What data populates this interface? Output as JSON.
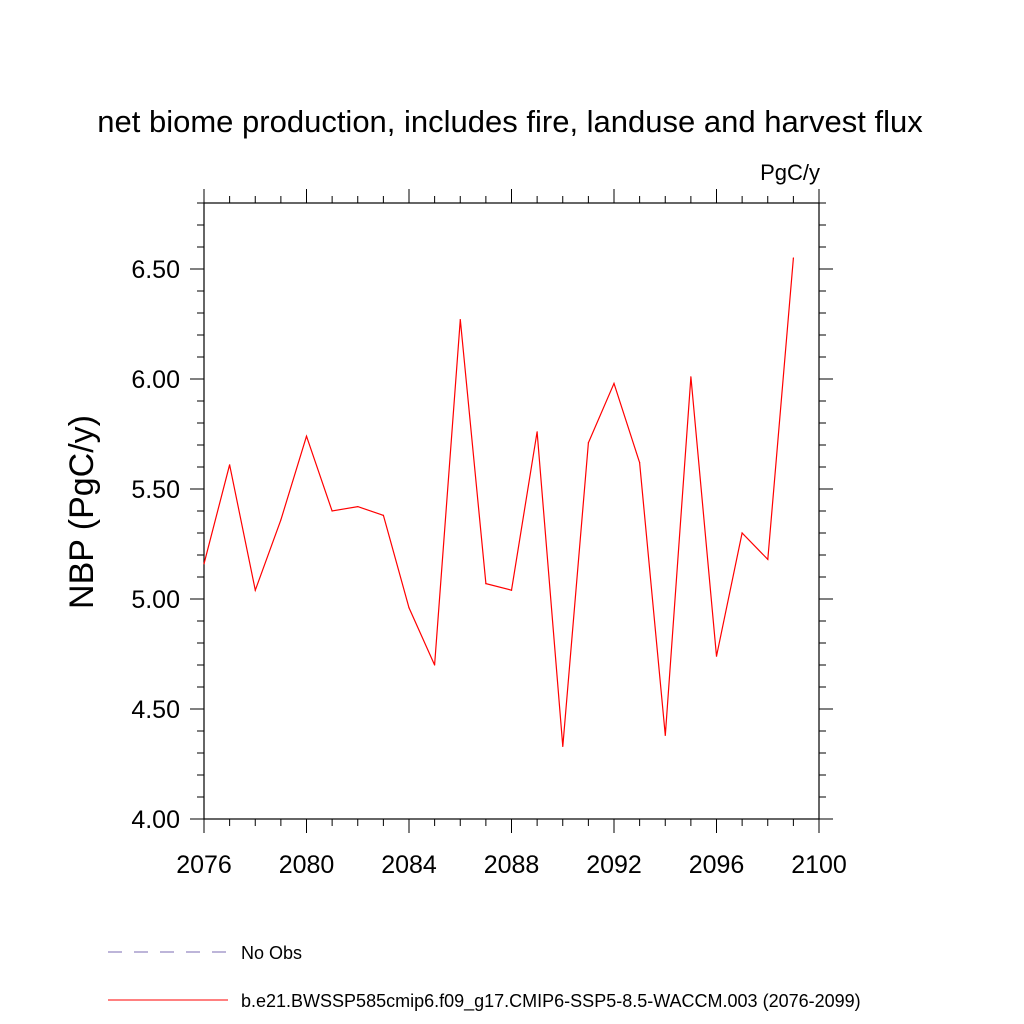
{
  "chart_data": {
    "type": "line",
    "title": "net biome production, includes fire, landuse and harvest flux",
    "units": "PgC/y",
    "ylabel": "NBP  (PgC/y)",
    "xlabel": "",
    "xlim": [
      2076,
      2100
    ],
    "ylim": [
      4.0,
      6.8
    ],
    "xticks": [
      2076,
      2080,
      2084,
      2088,
      2092,
      2096,
      2100
    ],
    "yticks": [
      4.0,
      4.5,
      5.0,
      5.5,
      6.0,
      6.5
    ],
    "ytick_labels": [
      "4.00",
      "4.50",
      "5.00",
      "5.50",
      "6.00",
      "6.50"
    ],
    "series": [
      {
        "name": "b.e21.BWSSP585cmip6.f09_g17.CMIP6-SSP5-8.5-WACCM.003 (2076-2099)",
        "color": "#ff0000",
        "x": [
          2076,
          2077,
          2078,
          2079,
          2080,
          2081,
          2082,
          2083,
          2084,
          2085,
          2086,
          2087,
          2088,
          2089,
          2090,
          2091,
          2092,
          2093,
          2094,
          2095,
          2096,
          2097,
          2098,
          2099
        ],
        "values": [
          5.16,
          5.61,
          5.04,
          5.36,
          5.74,
          5.4,
          5.42,
          5.38,
          4.96,
          4.7,
          6.27,
          5.07,
          5.04,
          5.76,
          4.33,
          5.71,
          5.98,
          5.62,
          4.38,
          6.01,
          4.74,
          5.3,
          5.18,
          6.55
        ]
      }
    ],
    "legend": [
      {
        "label": "No Obs",
        "color": "#7b6bb3",
        "style": "dashed"
      },
      {
        "label": "b.e21.BWSSP585cmip6.f09_g17.CMIP6-SSP5-8.5-WACCM.003 (2076-2099)",
        "color": "#ff0000",
        "style": "solid"
      }
    ]
  }
}
